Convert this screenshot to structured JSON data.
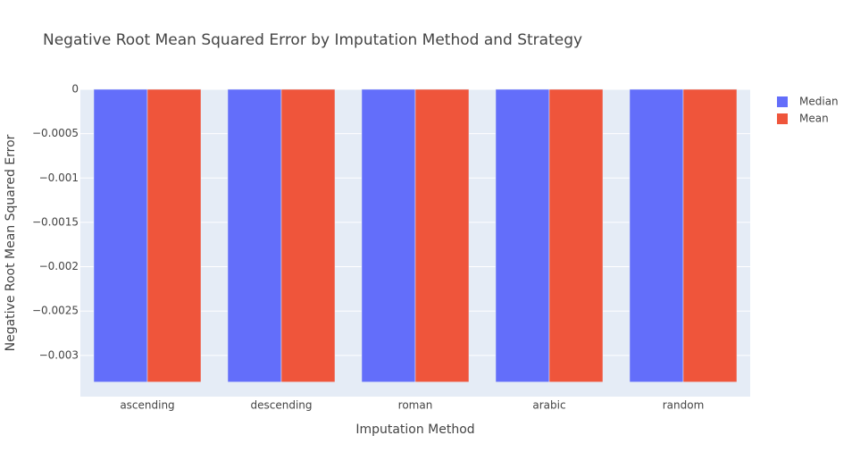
{
  "chart_data": {
    "type": "bar",
    "title": "Negative Root Mean Squared Error by Imputation Method and Strategy",
    "x_label": "Imputation Method",
    "y_label": "Negative Root Mean Squared Error",
    "categories": [
      "ascending",
      "descending",
      "roman",
      "arabic",
      "random"
    ],
    "series": [
      {
        "name": "Median",
        "color": "#636efa",
        "values": [
          -0.0033,
          -0.0033,
          -0.0033,
          -0.0033,
          -0.0033
        ]
      },
      {
        "name": "Mean",
        "color": "#ef553b",
        "values": [
          -0.0033,
          -0.0033,
          -0.0033,
          -0.0033,
          -0.0033
        ]
      }
    ],
    "ylim": [
      -0.003465,
      0
    ],
    "yticks": [
      0,
      {
        "value": -0.0005,
        "label": "−0.0005"
      },
      {
        "value": -0.001,
        "label": "−0.001"
      },
      {
        "value": -0.0015,
        "label": "−0.0015"
      },
      {
        "value": -0.002,
        "label": "−0.002"
      },
      {
        "value": -0.0025,
        "label": "−0.0025"
      },
      {
        "value": -0.003,
        "label": "−0.003"
      }
    ],
    "grid": true,
    "legend": "top-right"
  }
}
